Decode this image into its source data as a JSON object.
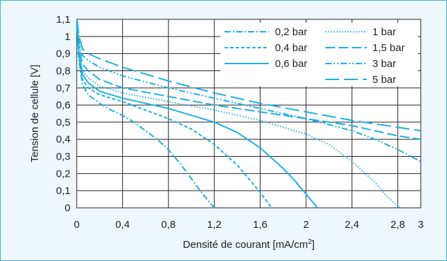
{
  "colors": {
    "frame_border": "#3cb4dc",
    "background": "#eef7fc",
    "series": "#1ab0e6",
    "grid": "#222222"
  },
  "chart_data": {
    "type": "line",
    "title": "",
    "xlabel": "Densité de courant [mA/cm²]",
    "ylabel": "Tension de cellule [V]",
    "xlim": [
      0,
      3
    ],
    "ylim": [
      0,
      1.1
    ],
    "xticks": [
      0,
      0.4,
      0.8,
      1.2,
      1.6,
      2,
      2.4,
      2.8,
      3
    ],
    "xtick_labels": [
      "0",
      "0,4",
      "0,8",
      "1,2",
      "1,6",
      "2",
      "2,4",
      "2,8",
      "3"
    ],
    "yticks": [
      0,
      0.1,
      0.2,
      0.3,
      0.4,
      0.5,
      0.6,
      0.7,
      0.8,
      0.9,
      1,
      1.1
    ],
    "ytick_labels": [
      "0",
      "0,1",
      "0,2",
      "0,3",
      "0,4",
      "0,5",
      "0,6",
      "0,7",
      "0,8",
      "0,9",
      "1",
      "1,1"
    ],
    "grid": true,
    "legend_position": "top-right",
    "series": [
      {
        "name": "0,2 bar",
        "dash": "dash-dot",
        "x": [
          0.003,
          0.02,
          0.05,
          0.1,
          0.2,
          0.3,
          0.4,
          0.5,
          0.6,
          0.7,
          0.8,
          0.9,
          1.0,
          1.1,
          1.2
        ],
        "y": [
          1.05,
          0.86,
          0.72,
          0.66,
          0.61,
          0.57,
          0.54,
          0.5,
          0.45,
          0.4,
          0.34,
          0.26,
          0.17,
          0.08,
          0.0
        ]
      },
      {
        "name": "0,4 bar",
        "dash": "short-dash",
        "x": [
          0.003,
          0.02,
          0.05,
          0.1,
          0.2,
          0.4,
          0.6,
          0.8,
          1.0,
          1.2,
          1.4,
          1.5,
          1.6,
          1.7
        ],
        "y": [
          1.05,
          0.88,
          0.75,
          0.7,
          0.66,
          0.62,
          0.57,
          0.52,
          0.46,
          0.37,
          0.25,
          0.17,
          0.09,
          0.0
        ]
      },
      {
        "name": "0,6 bar",
        "dash": "solid",
        "x": [
          0.003,
          0.02,
          0.05,
          0.1,
          0.2,
          0.4,
          0.8,
          1.2,
          1.4,
          1.6,
          1.8,
          1.9,
          2.0,
          2.1
        ],
        "y": [
          1.05,
          0.9,
          0.78,
          0.73,
          0.68,
          0.64,
          0.58,
          0.5,
          0.44,
          0.35,
          0.23,
          0.16,
          0.08,
          0.0
        ]
      },
      {
        "name": "1 bar",
        "dash": "dotted",
        "x": [
          0.003,
          0.02,
          0.05,
          0.1,
          0.2,
          0.4,
          0.8,
          1.2,
          1.6,
          2.0,
          2.2,
          2.4,
          2.6,
          2.7,
          2.82
        ],
        "y": [
          1.05,
          0.92,
          0.8,
          0.76,
          0.71,
          0.67,
          0.62,
          0.57,
          0.51,
          0.43,
          0.37,
          0.27,
          0.15,
          0.07,
          0.0
        ]
      },
      {
        "name": "1,5 bar",
        "dash": "long-dash",
        "x": [
          0.003,
          0.02,
          0.05,
          0.1,
          0.2,
          0.4,
          0.8,
          1.2,
          1.6,
          2.0,
          2.4,
          2.8,
          3.0
        ],
        "y": [
          1.06,
          0.94,
          0.84,
          0.8,
          0.75,
          0.7,
          0.65,
          0.6,
          0.56,
          0.52,
          0.48,
          0.42,
          0.4
        ]
      },
      {
        "name": "3 bar",
        "dash": "dash-dot-dot",
        "x": [
          0.003,
          0.02,
          0.05,
          0.1,
          0.2,
          0.4,
          0.8,
          1.2,
          1.6,
          2.0,
          2.4,
          2.6,
          2.8,
          3.0
        ],
        "y": [
          1.08,
          0.97,
          0.89,
          0.86,
          0.82,
          0.77,
          0.7,
          0.64,
          0.58,
          0.52,
          0.45,
          0.4,
          0.34,
          0.27
        ]
      },
      {
        "name": "5 bar",
        "dash": "extra-long-dash",
        "x": [
          0.003,
          0.02,
          0.05,
          0.1,
          0.2,
          0.4,
          0.8,
          1.2,
          1.6,
          2.0,
          2.4,
          2.8,
          3.0
        ],
        "y": [
          1.1,
          1.0,
          0.93,
          0.9,
          0.87,
          0.82,
          0.74,
          0.67,
          0.61,
          0.56,
          0.51,
          0.47,
          0.45
        ]
      }
    ]
  }
}
